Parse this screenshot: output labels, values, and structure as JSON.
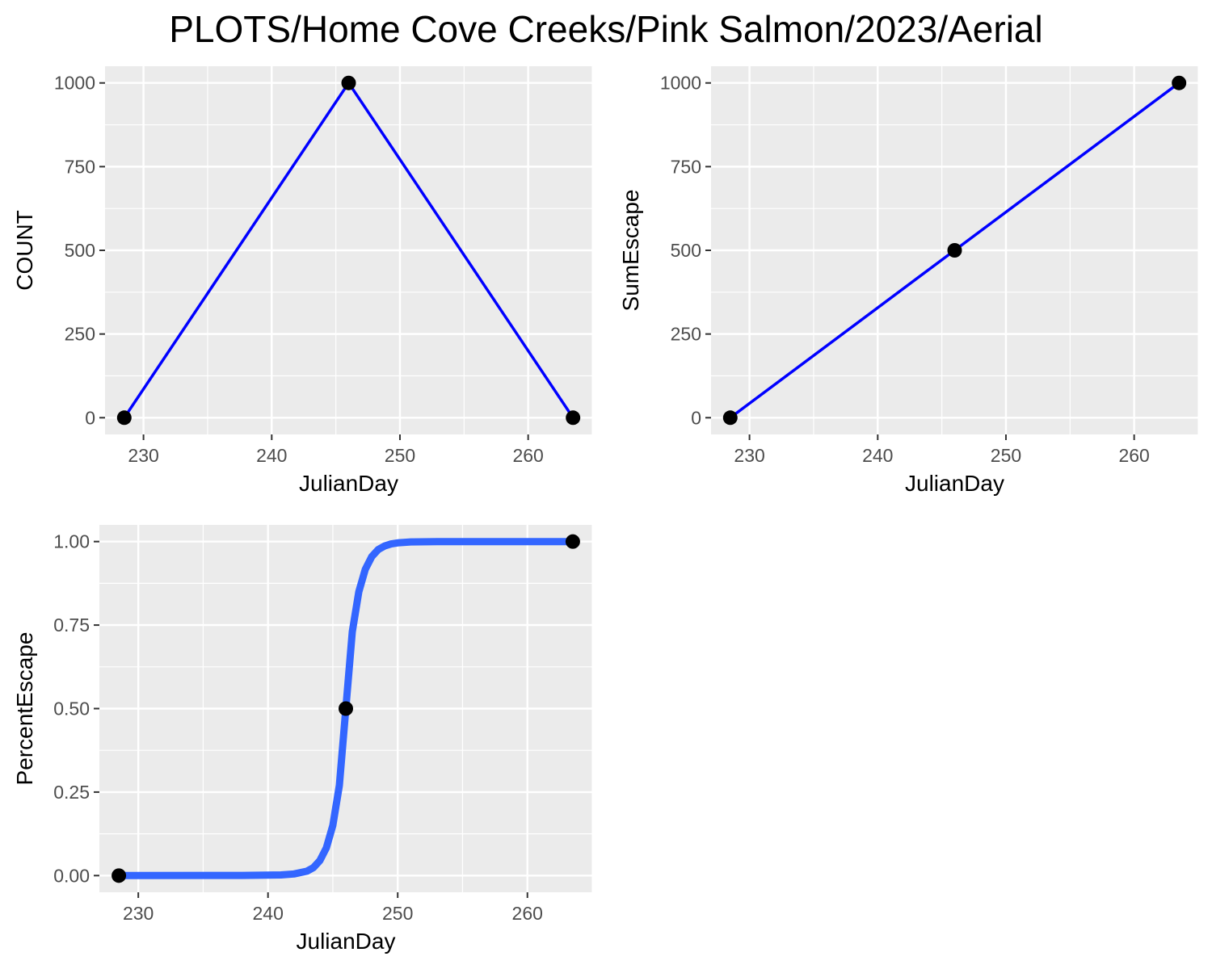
{
  "title": "PLOTS/Home Cove Creeks/Pink Salmon/2023/Aerial",
  "chart_data": [
    {
      "type": "line",
      "xlabel": "JulianDay",
      "ylabel": "COUNT",
      "xlim": [
        227,
        265
      ],
      "ylim": [
        -50,
        1050
      ],
      "xticks": [
        230,
        240,
        250,
        260
      ],
      "yticks": [
        0,
        250,
        500,
        750,
        1000
      ],
      "ytick_labels": [
        "0",
        "250",
        "500",
        "750",
        "1000"
      ],
      "series": [
        {
          "x": [
            228.5,
            246,
            263.5
          ],
          "y": [
            0,
            1000,
            0
          ],
          "color": "#0000ff"
        }
      ],
      "points": {
        "x": [
          228.5,
          246,
          263.5
        ],
        "y": [
          0,
          1000,
          0
        ],
        "color": "#000000"
      },
      "grid": true
    },
    {
      "type": "line",
      "xlabel": "JulianDay",
      "ylabel": "SumEscape",
      "xlim": [
        227,
        265
      ],
      "ylim": [
        -50,
        1050
      ],
      "xticks": [
        230,
        240,
        250,
        260
      ],
      "yticks": [
        0,
        250,
        500,
        750,
        1000
      ],
      "ytick_labels": [
        "0",
        "250",
        "500",
        "750",
        "1000"
      ],
      "series": [
        {
          "x": [
            228.5,
            246,
            263.5
          ],
          "y": [
            0,
            500,
            1000
          ],
          "color": "#0000ff"
        }
      ],
      "points": {
        "x": [
          228.5,
          246,
          263.5
        ],
        "y": [
          0,
          500,
          1000
        ],
        "color": "#000000"
      },
      "grid": true
    },
    {
      "type": "line",
      "xlabel": "JulianDay",
      "ylabel": "PercentEscape",
      "xlim": [
        227,
        265
      ],
      "ylim": [
        -0.05,
        1.05
      ],
      "xticks": [
        230,
        240,
        250,
        260
      ],
      "yticks": [
        0,
        0.25,
        0.5,
        0.75,
        1.0
      ],
      "ytick_labels": [
        "0.00",
        "0.25",
        "0.50",
        "0.75",
        "1.00"
      ],
      "series": [
        {
          "x": [
            228.5,
            238,
            241,
            242,
            243,
            243.5,
            244,
            244.5,
            245,
            245.5,
            246,
            246.5,
            247,
            247.5,
            248,
            248.5,
            249,
            249.5,
            250,
            251,
            253,
            263.5
          ],
          "y": [
            0,
            0.0005,
            0.002,
            0.005,
            0.013,
            0.024,
            0.045,
            0.083,
            0.15,
            0.27,
            0.5,
            0.73,
            0.85,
            0.917,
            0.955,
            0.976,
            0.987,
            0.993,
            0.996,
            0.999,
            1.0,
            1.0
          ],
          "color": "#3366ff"
        }
      ],
      "points": {
        "x": [
          228.5,
          246,
          263.5
        ],
        "y": [
          0,
          0.5,
          1.0
        ],
        "color": "#000000"
      },
      "grid": true
    }
  ]
}
